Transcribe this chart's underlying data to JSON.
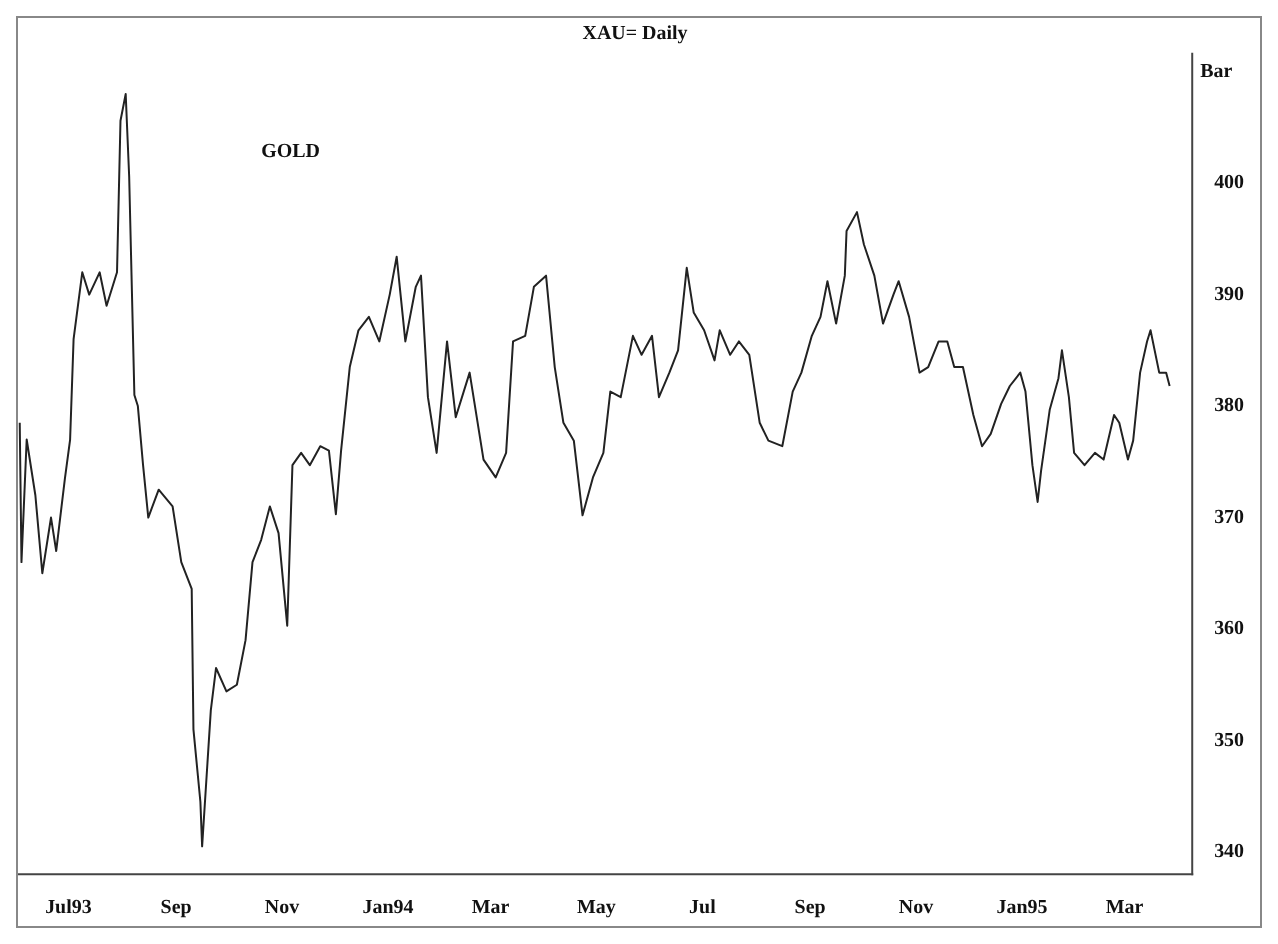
{
  "chart_data": {
    "type": "line",
    "title": "XAU= Daily",
    "ylabel": "Bar",
    "annotations": [
      "GOLD"
    ],
    "xlim": [
      "1993-06-02",
      "1995-04-09"
    ],
    "ylim": [
      338,
      411.6
    ],
    "xticks": [
      {
        "value": "1993-07-01",
        "label": "Jul93"
      },
      {
        "value": "1993-09-01",
        "label": "Sep"
      },
      {
        "value": "1993-11-01",
        "label": "Nov"
      },
      {
        "value": "1994-01-01",
        "label": "Jan94"
      },
      {
        "value": "1994-03-01",
        "label": "Mar"
      },
      {
        "value": "1994-05-01",
        "label": "May"
      },
      {
        "value": "1994-07-01",
        "label": "Jul"
      },
      {
        "value": "1994-09-01",
        "label": "Sep"
      },
      {
        "value": "1994-11-01",
        "label": "Nov"
      },
      {
        "value": "1995-01-01",
        "label": "Jan95"
      },
      {
        "value": "1995-03-01",
        "label": "Mar"
      }
    ],
    "yticks": [
      340,
      350,
      360,
      370,
      380,
      390,
      400
    ],
    "series": [
      {
        "color": "#222222",
        "x": [
          "1993-06-03",
          "1993-06-04",
          "1993-06-07",
          "1993-06-12",
          "1993-06-16",
          "1993-06-21",
          "1993-06-24",
          "1993-06-29",
          "1993-07-02",
          "1993-07-04",
          "1993-07-09",
          "1993-07-13",
          "1993-07-19",
          "1993-07-23",
          "1993-07-29",
          "1993-07-31",
          "1993-08-03",
          "1993-08-05",
          "1993-08-08",
          "1993-08-10",
          "1993-08-13",
          "1993-08-16",
          "1993-08-22",
          "1993-08-30",
          "1993-09-04",
          "1993-09-10",
          "1993-09-11",
          "1993-09-15",
          "1993-09-16",
          "1993-09-21",
          "1993-09-24",
          "1993-09-30",
          "1993-10-06",
          "1993-10-11",
          "1993-10-15",
          "1993-10-20",
          "1993-10-25",
          "1993-10-30",
          "1993-11-04",
          "1993-11-07",
          "1993-11-12",
          "1993-11-17",
          "1993-11-23",
          "1993-11-28",
          "1993-12-02",
          "1993-12-05",
          "1993-12-10",
          "1993-12-15",
          "1993-12-21",
          "1993-12-27",
          "1994-01-02",
          "1994-01-06",
          "1994-01-11",
          "1994-01-17",
          "1994-01-20",
          "1994-01-24",
          "1994-01-29",
          "1994-02-04",
          "1994-02-09",
          "1994-02-17",
          "1994-02-25",
          "1994-03-04",
          "1994-03-10",
          "1994-03-14",
          "1994-03-21",
          "1994-03-26",
          "1994-04-02",
          "1994-04-07",
          "1994-04-12",
          "1994-04-18",
          "1994-04-23",
          "1994-04-29",
          "1994-05-05",
          "1994-05-09",
          "1994-05-15",
          "1994-05-22",
          "1994-05-27",
          "1994-06-02",
          "1994-06-06",
          "1994-06-12",
          "1994-06-17",
          "1994-06-22",
          "1994-06-26",
          "1994-07-02",
          "1994-07-08",
          "1994-07-11",
          "1994-07-17",
          "1994-07-22",
          "1994-07-28",
          "1994-08-03",
          "1994-08-08",
          "1994-08-16",
          "1994-08-22",
          "1994-08-27",
          "1994-09-02",
          "1994-09-07",
          "1994-09-11",
          "1994-09-16",
          "1994-09-21",
          "1994-09-22",
          "1994-09-28",
          "1994-10-02",
          "1994-10-08",
          "1994-10-13",
          "1994-10-19",
          "1994-10-22",
          "1994-10-28",
          "1994-11-03",
          "1994-11-08",
          "1994-11-14",
          "1994-11-19",
          "1994-11-23",
          "1994-11-28",
          "1994-12-04",
          "1994-12-09",
          "1994-12-14",
          "1994-12-20",
          "1994-12-25",
          "1994-12-31",
          "1995-01-03",
          "1995-01-07",
          "1995-01-10",
          "1995-01-12",
          "1995-01-17",
          "1995-01-22",
          "1995-01-24",
          "1995-01-28",
          "1995-01-31",
          "1995-02-06",
          "1995-02-12",
          "1995-02-17",
          "1995-02-23",
          "1995-02-26",
          "1995-03-03",
          "1995-03-06",
          "1995-03-10",
          "1995-03-14",
          "1995-03-16",
          "1995-03-21",
          "1995-03-25",
          "1995-03-27"
        ],
        "values": [
          378.5,
          366,
          377,
          372,
          365,
          370,
          367,
          373.5,
          377,
          386,
          392,
          390,
          392,
          389,
          392,
          405.6,
          408,
          400.6,
          381,
          380,
          374.7,
          370,
          372.5,
          371,
          366,
          363.6,
          351,
          344.5,
          340.5,
          352.7,
          356.5,
          354.4,
          355,
          359,
          366,
          368,
          371,
          368.6,
          360.3,
          374.7,
          375.8,
          374.7,
          376.4,
          376,
          370.3,
          376,
          383.5,
          386.8,
          388,
          385.8,
          390,
          393.4,
          385.8,
          390.7,
          391.7,
          380.8,
          375.8,
          385.8,
          379,
          383,
          375.2,
          373.6,
          375.8,
          385.8,
          386.3,
          390.7,
          391.7,
          383.5,
          378.5,
          376.9,
          370.2,
          373.6,
          375.8,
          381.3,
          380.8,
          386.3,
          384.6,
          386.3,
          380.8,
          383,
          385,
          392.4,
          388.4,
          386.8,
          384.1,
          386.8,
          384.6,
          385.8,
          384.6,
          378.5,
          376.9,
          376.4,
          381.3,
          383,
          386.3,
          388,
          391.2,
          387.4,
          391.7,
          395.7,
          397.4,
          394.5,
          391.7,
          387.4,
          390,
          391.2,
          388,
          383,
          383.5,
          385.8,
          385.8,
          383.5,
          383.5,
          379.2,
          376.4,
          377.5,
          380.2,
          381.8,
          383,
          381.3,
          374.7,
          371.4,
          374.2,
          379.7,
          382.5,
          385,
          380.8,
          375.8,
          374.7,
          375.8,
          375.2,
          379.2,
          378.5,
          375.2,
          376.9,
          383,
          385.8,
          386.8,
          383,
          383,
          381.8
        ]
      }
    ]
  }
}
